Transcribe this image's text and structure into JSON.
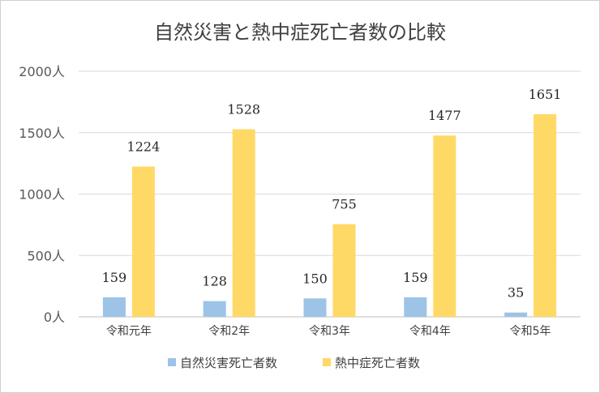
{
  "chart_data": {
    "type": "bar",
    "title": "自然災害と熱中症死亡者数の比較",
    "categories": [
      "令和元年",
      "令和2年",
      "令和3年",
      "令和4年",
      "令和5年"
    ],
    "series": [
      {
        "name": "自然災害死亡者数",
        "values": [
          159,
          128,
          150,
          159,
          35
        ],
        "color": "#9dc3e6"
      },
      {
        "name": "熱中症死亡者数",
        "values": [
          1224,
          1528,
          755,
          1477,
          1651
        ],
        "color": "#ffd966"
      }
    ],
    "ylim": [
      0,
      2000
    ],
    "yticks": [
      0,
      500,
      1000,
      1500,
      2000
    ],
    "ytick_labels": [
      "0人",
      "500人",
      "1000人",
      "1500人",
      "2000人"
    ],
    "grid": true,
    "legend": "bottom",
    "data_labels": true
  }
}
